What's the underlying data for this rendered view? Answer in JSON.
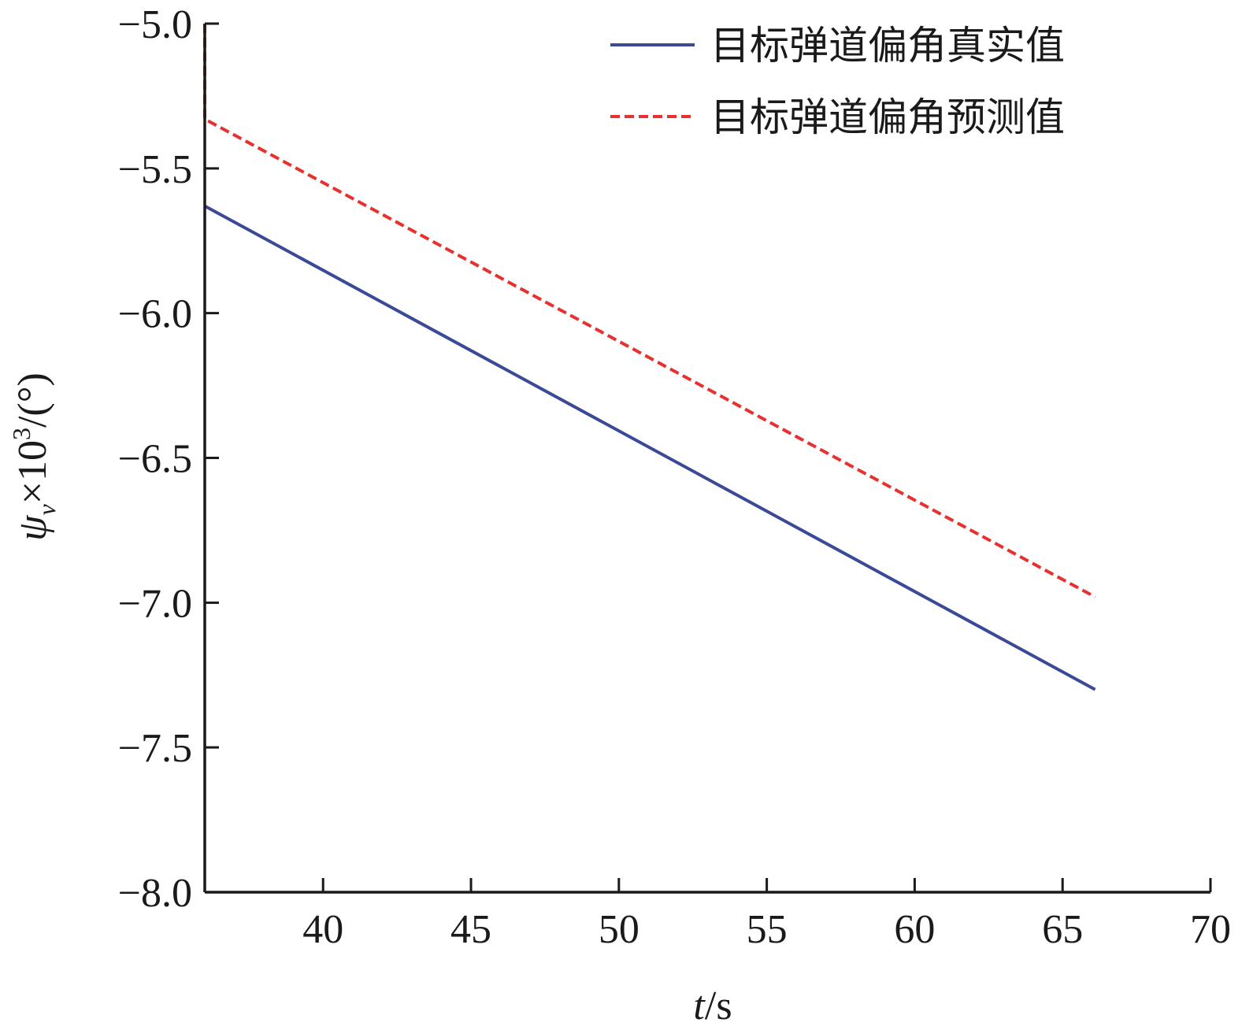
{
  "chart_data": {
    "type": "line",
    "title": "",
    "xlabel_main": "t",
    "xlabel_unit": "/s",
    "ylabel_symbol": "ψ",
    "ylabel_subscript": "v",
    "ylabel_times": "×10",
    "ylabel_exp": "3",
    "ylabel_unit": "/(°)",
    "xlim": [
      36,
      70
    ],
    "ylim": [
      -8.0,
      -5.0
    ],
    "xticks": [
      40,
      45,
      50,
      55,
      60,
      65,
      70
    ],
    "yticks": [
      -5.0,
      -5.5,
      -6.0,
      -6.5,
      -7.0,
      -7.5,
      -8.0
    ],
    "xtick_labels": [
      "40",
      "45",
      "50",
      "55",
      "60",
      "65",
      "70"
    ],
    "ytick_labels": [
      "−5.0",
      "−5.5",
      "−6.0",
      "−6.5",
      "−7.0",
      "−7.5",
      "−8.0"
    ],
    "legend_position": "top-right",
    "grid": false,
    "series": [
      {
        "name": "目标弹道偏角真实值",
        "style": "solid",
        "color": "#3b4a96",
        "x": [
          36,
          66.1
        ],
        "y": [
          -5.63,
          -7.3
        ]
      },
      {
        "name": "目标弹道偏角预测值",
        "style": "dashed",
        "color": "#e8312f",
        "x": [
          36,
          36,
          66.1
        ],
        "y": [
          -5.0,
          -5.33,
          -6.98
        ]
      }
    ]
  }
}
